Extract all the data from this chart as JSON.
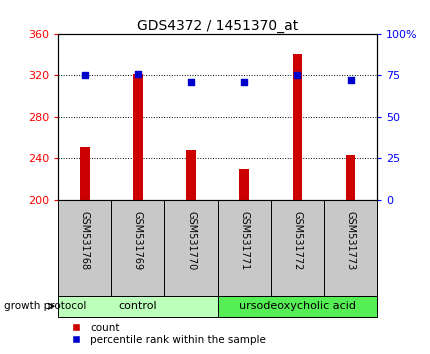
{
  "title": "GDS4372 / 1451370_at",
  "samples": [
    "GSM531768",
    "GSM531769",
    "GSM531770",
    "GSM531771",
    "GSM531772",
    "GSM531773"
  ],
  "counts": [
    251,
    321,
    248,
    230,
    340,
    243
  ],
  "percentiles": [
    75,
    76,
    71,
    71,
    75,
    72
  ],
  "ylim_left": [
    200,
    360
  ],
  "ylim_right": [
    0,
    100
  ],
  "yticks_left": [
    200,
    240,
    280,
    320,
    360
  ],
  "yticks_right": [
    0,
    25,
    50,
    75,
    100
  ],
  "bar_color": "#CC0000",
  "dot_color": "#0000CC",
  "groups": [
    {
      "label": "control",
      "indices": [
        0,
        1,
        2
      ],
      "color": "#BBFFBB"
    },
    {
      "label": "ursodeoxycholic acid",
      "indices": [
        3,
        4,
        5
      ],
      "color": "#55EE55"
    }
  ],
  "group_label": "growth protocol",
  "legend_count_label": "count",
  "legend_pct_label": "percentile rank within the sample",
  "bar_width": 0.18,
  "plot_bg": "#FFFFFF",
  "label_area_bg": "#C8C8C8",
  "title_fontsize": 10,
  "tick_fontsize": 8
}
